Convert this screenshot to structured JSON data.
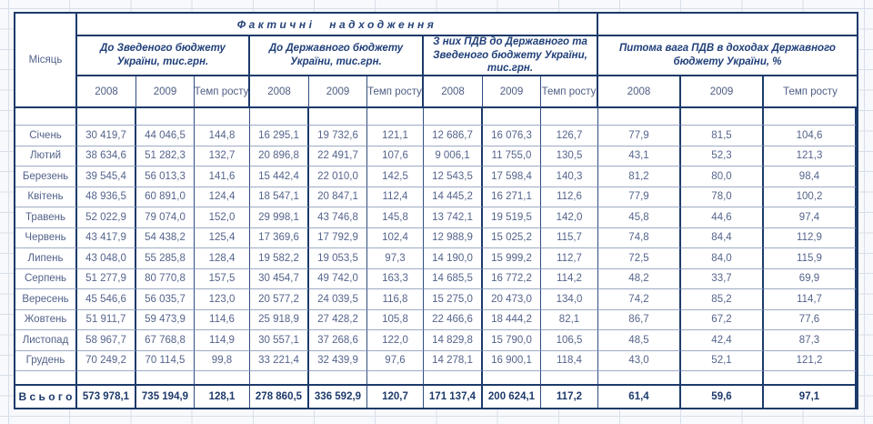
{
  "table": {
    "corner_label": "Місяць",
    "top_header": "Фактичні надходження",
    "groups": [
      {
        "title": "До Зведеного бюджету України, тис.грн."
      },
      {
        "title": "До Державного бюджету України, тис.грн."
      },
      {
        "title": "З них ПДВ до Державного та Зведеного бюджету України, тис.грн."
      },
      {
        "title": "Питома вага ПДВ в доходах Державного бюджету України, %"
      }
    ],
    "year_headers": [
      "2008",
      "2009",
      "Темп росту"
    ],
    "rows": [
      {
        "month": "Січень",
        "values": [
          "30 419,7",
          "44 046,5",
          "144,8",
          "16 295,1",
          "19 732,6",
          "121,1",
          "12 686,7",
          "16 076,3",
          "126,7",
          "77,9",
          "81,5",
          "104,6"
        ]
      },
      {
        "month": "Лютий",
        "values": [
          "38 634,6",
          "51 282,3",
          "132,7",
          "20 896,8",
          "22 491,7",
          "107,6",
          "9 006,1",
          "11 755,0",
          "130,5",
          "43,1",
          "52,3",
          "121,3"
        ]
      },
      {
        "month": "Березень",
        "values": [
          "39 545,4",
          "56 013,3",
          "141,6",
          "15 442,4",
          "22 010,0",
          "142,5",
          "12 543,5",
          "17 598,4",
          "140,3",
          "81,2",
          "80,0",
          "98,4"
        ]
      },
      {
        "month": "Квітень",
        "values": [
          "48 936,5",
          "60 891,0",
          "124,4",
          "18 547,1",
          "20 847,1",
          "112,4",
          "14 445,2",
          "16 271,1",
          "112,6",
          "77,9",
          "78,0",
          "100,2"
        ]
      },
      {
        "month": "Травень",
        "values": [
          "52 022,9",
          "79 074,0",
          "152,0",
          "29 998,1",
          "43 746,8",
          "145,8",
          "13 742,1",
          "19 519,5",
          "142,0",
          "45,8",
          "44,6",
          "97,4"
        ]
      },
      {
        "month": "Червень",
        "values": [
          "43 417,9",
          "54 438,2",
          "125,4",
          "17 369,6",
          "17 792,9",
          "102,4",
          "12 988,9",
          "15 025,2",
          "115,7",
          "74,8",
          "84,4",
          "112,9"
        ]
      },
      {
        "month": "Липень",
        "values": [
          "43 048,0",
          "55 285,8",
          "128,4",
          "19 582,2",
          "19 053,5",
          "97,3",
          "14 190,0",
          "15 999,2",
          "112,7",
          "72,5",
          "84,0",
          "115,9"
        ]
      },
      {
        "month": "Серпень",
        "values": [
          "51 277,9",
          "80 770,8",
          "157,5",
          "30 454,7",
          "49 742,0",
          "163,3",
          "14 685,5",
          "16 772,2",
          "114,2",
          "48,2",
          "33,7",
          "69,9"
        ]
      },
      {
        "month": "Вересень",
        "values": [
          "45 546,6",
          "56 035,7",
          "123,0",
          "20 577,2",
          "24 039,5",
          "116,8",
          "15 275,0",
          "20 473,0",
          "134,0",
          "74,2",
          "85,2",
          "114,7"
        ]
      },
      {
        "month": "Жовтень",
        "values": [
          "51 911,7",
          "59 473,9",
          "114,6",
          "25 918,9",
          "27 428,2",
          "105,8",
          "22 466,6",
          "18 444,2",
          "82,1",
          "86,7",
          "67,2",
          "77,6"
        ]
      },
      {
        "month": "Листопад",
        "values": [
          "58 967,7",
          "67 768,8",
          "114,9",
          "30 557,1",
          "37 268,6",
          "122,0",
          "14 829,8",
          "15 790,0",
          "106,5",
          "48,5",
          "42,4",
          "87,3"
        ]
      },
      {
        "month": "Грудень",
        "values": [
          "70 249,2",
          "70 114,5",
          "99,8",
          "33 221,4",
          "32 439,9",
          "97,6",
          "14 278,1",
          "16 900,1",
          "118,4",
          "43,0",
          "52,1",
          "121,2"
        ]
      }
    ],
    "total": {
      "label": "В с ь о г о",
      "values": [
        "573 978,1",
        "735 194,9",
        "128,1",
        "278 860,5",
        "336 592,9",
        "120,7",
        "171 137,4",
        "200 624,1",
        "117,2",
        "61,4",
        "59,6",
        "97,1"
      ]
    }
  },
  "colors": {
    "border_navy": "#1d3a6b",
    "thin_vertical": "#2f4c7e",
    "row_line": "#9dabc6",
    "header_text": "#21407a",
    "data_text": "#55648c",
    "grid_line": "#d8dfe9",
    "sheet_bg": "#f7f9fc"
  }
}
